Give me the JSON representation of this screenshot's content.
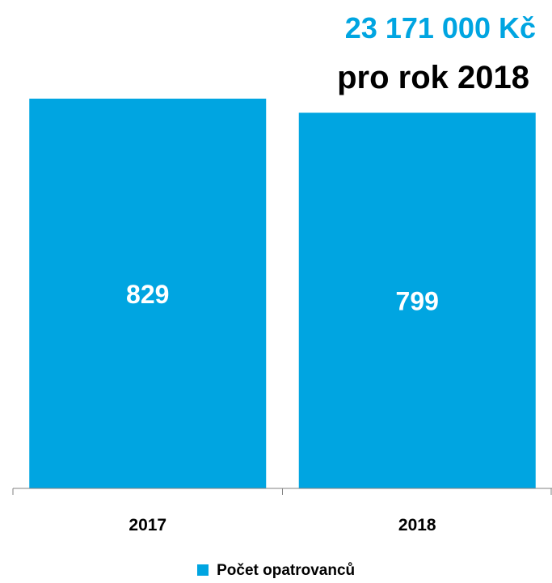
{
  "header": {
    "amount": "23 171 000 Kč",
    "caption": "pro rok 2018"
  },
  "colors": {
    "bar": "#00a5e1",
    "amount": "#00a5e1",
    "axis": "#808080"
  },
  "chart_data": {
    "type": "bar",
    "categories": [
      "2017",
      "2018"
    ],
    "series": [
      {
        "name": "Počet opatrovanců",
        "values": [
          829,
          799
        ]
      }
    ],
    "data_labels": [
      "829",
      "799"
    ],
    "title": "",
    "xlabel": "",
    "ylabel": "",
    "ylim": [
      0,
      829
    ],
    "grid": false,
    "legend": "bottom"
  }
}
